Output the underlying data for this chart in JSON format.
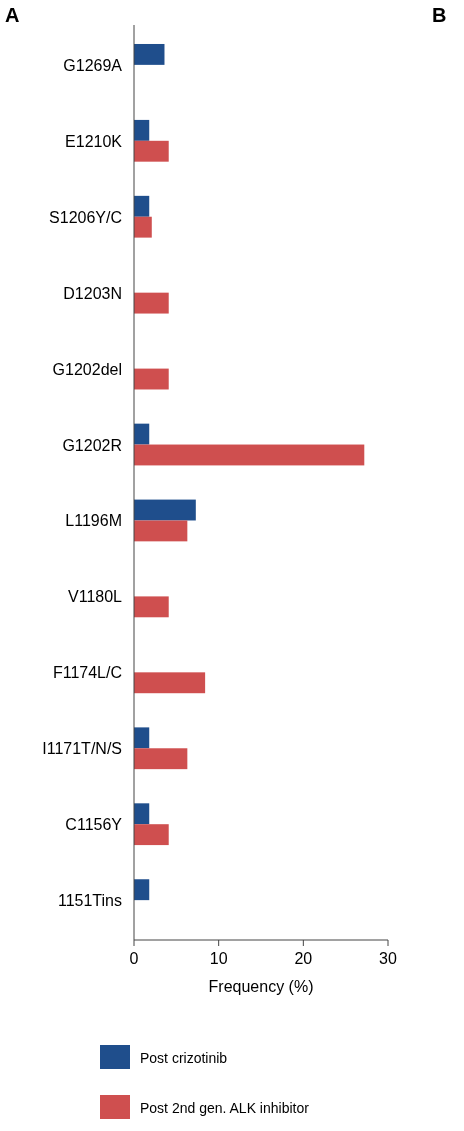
{
  "chart_data": {
    "type": "bar",
    "orientation": "horizontal",
    "xlabel": "Frequency (%)",
    "annotations": [
      "A",
      "B"
    ],
    "categories": [
      "G1269A",
      "E1210K",
      "S1206Y/C",
      "D1203N",
      "G1202del",
      "G1202R",
      "L1196M",
      "V1180L",
      "F1174L/C",
      "I1171T/N/S",
      "C1156Y",
      "1151Tins"
    ],
    "series": [
      {
        "name": "Post crizotinib",
        "color": "#1f4e8c",
        "values": [
          3.6,
          1.8,
          1.8,
          null,
          null,
          1.8,
          7.3,
          null,
          null,
          1.8,
          1.8,
          1.8
        ]
      },
      {
        "name": "Post 2nd gen. ALK inhibitor",
        "color": "#cf4f4f",
        "values": [
          null,
          4.1,
          2.1,
          4.1,
          4.1,
          27.2,
          6.3,
          4.1,
          8.4,
          6.3,
          4.1,
          null
        ]
      }
    ],
    "xlim": [
      0,
      30
    ],
    "xticks": [
      0,
      10,
      20,
      30
    ],
    "grid": false,
    "legend": "bottom"
  }
}
